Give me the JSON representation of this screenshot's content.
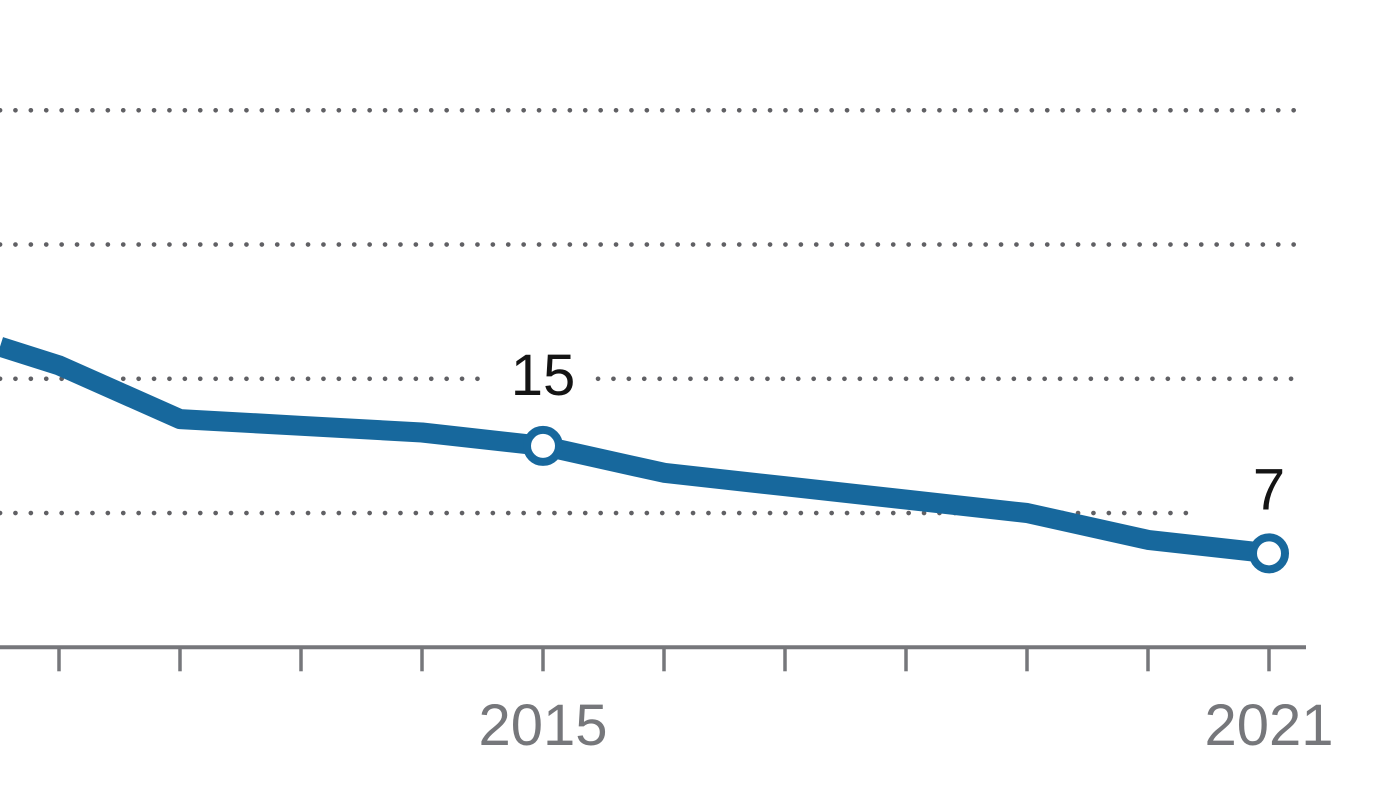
{
  "chart_data": {
    "type": "line",
    "title": "",
    "xlabel": "",
    "ylabel": "",
    "x": [
      2011,
      2012,
      2013,
      2014,
      2015,
      2016,
      2017,
      2018,
      2019,
      2020,
      2021
    ],
    "values": [
      21,
      17,
      16.5,
      16,
      15,
      13,
      12,
      11,
      10,
      8,
      7
    ],
    "left_edge_entry_value": 22.4,
    "series_note": "single series; line is cropped at left edge (pre-2011 segment enters at ~22.4)",
    "point_labels": [
      {
        "x": 2015,
        "value": 15,
        "text": "15"
      },
      {
        "x": 2021,
        "value": 7,
        "text": "7"
      }
    ],
    "x_tick_years": [
      2011,
      2012,
      2013,
      2014,
      2015,
      2016,
      2017,
      2018,
      2019,
      2020,
      2021
    ],
    "x_tick_labels": [
      "2015",
      "2021"
    ],
    "gridline_values": [
      10,
      20,
      30,
      40
    ],
    "axis_baseline_value": 0,
    "ylim": [
      0,
      44
    ],
    "grid": "dotted horizontal lines, no vertical grid",
    "legend": "none",
    "colors": {
      "line": "#17689d",
      "marker_fill": "#ffffff",
      "marker_ring": "#17689d",
      "grid_dots": "#606064",
      "axis": "#76777b",
      "tick_label": "#76777b",
      "point_label": "#141414",
      "background": "#ffffff"
    }
  }
}
